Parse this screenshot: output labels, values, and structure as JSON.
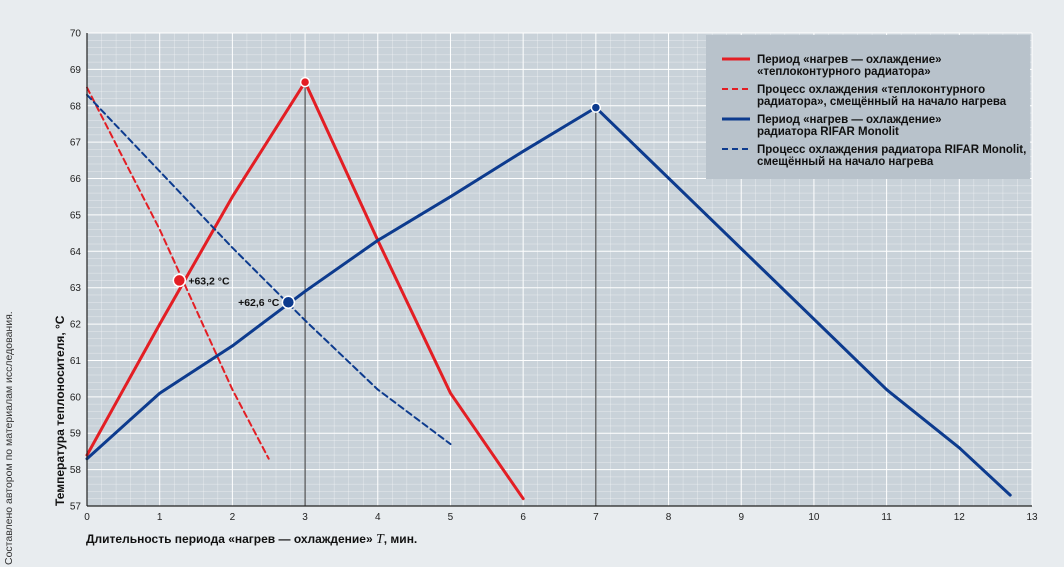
{
  "chart_data": {
    "type": "line",
    "xlabel_prefix": "Длительность периода «нагрев — охлаждение» ",
    "xlabel_var": "T",
    "xlabel_suffix": ", мин.",
    "ylabel": "Температура теплоносителя, °С",
    "source": "Составлено автором по материалам исследования.",
    "xlim": [
      0,
      13
    ],
    "ylim": [
      57,
      70
    ],
    "x_ticks": [
      0,
      1,
      2,
      3,
      4,
      5,
      6,
      7,
      8,
      9,
      10,
      11,
      12,
      13
    ],
    "y_ticks": [
      57,
      58,
      59,
      60,
      61,
      62,
      63,
      64,
      65,
      66,
      67,
      68,
      69,
      70
    ],
    "grid": true,
    "legend_position": "top-right",
    "series": [
      {
        "name": "Период «нагрев — охлаждение» «теплоконтурного радиатора»",
        "legend_lines": [
          "Период «нагрев — охлаждение»",
          "«теплоконтурного радиатора»"
        ],
        "color": "#e31e24",
        "dashed": false,
        "points": [
          [
            0,
            58.4
          ],
          [
            1,
            62.0
          ],
          [
            2,
            65.5
          ],
          [
            3,
            68.65
          ],
          [
            4,
            64.3
          ],
          [
            5,
            60.1
          ],
          [
            6,
            57.2
          ]
        ]
      },
      {
        "name": "Процесс охлаждения «теплоконтурного радиатора», смещённый на начало нагрева",
        "legend_lines": [
          "Процесс охлаждения «теплоконтурного",
          "радиатора», смещённый на начало нагрева"
        ],
        "color": "#e31e24",
        "dashed": true,
        "points": [
          [
            0,
            68.5
          ],
          [
            1,
            64.6
          ],
          [
            2,
            60.2
          ],
          [
            2.5,
            58.3
          ]
        ]
      },
      {
        "name": "Период «нагрев — охлаждение» радиатора RIFAR Monolit",
        "legend_lines": [
          "Период «нагрев — охлаждение»",
          "радиатора RIFAR Monolit"
        ],
        "color": "#0d3b8e",
        "dashed": false,
        "points": [
          [
            0,
            58.3
          ],
          [
            1,
            60.1
          ],
          [
            2,
            61.4
          ],
          [
            3,
            62.9
          ],
          [
            4,
            64.3
          ],
          [
            5,
            65.5
          ],
          [
            6,
            66.75
          ],
          [
            7,
            67.95
          ],
          [
            11,
            60.2
          ],
          [
            12,
            58.6
          ],
          [
            12.7,
            57.3
          ]
        ]
      },
      {
        "name": "Процесс охлаждения радиатора RIFAR Monolit, смещённый на начало нагрева",
        "legend_lines": [
          "Процесс охлаждения радиатора RIFAR Monolit,",
          "смещённый на начало нагрева"
        ],
        "color": "#0d3b8e",
        "dashed": true,
        "points": [
          [
            0,
            68.3
          ],
          [
            1,
            66.2
          ],
          [
            2,
            64.1
          ],
          [
            3,
            62.1
          ],
          [
            4,
            60.2
          ],
          [
            5,
            58.7
          ]
        ]
      }
    ],
    "peaks": [
      {
        "x": 3,
        "y": 68.65,
        "color": "#e31e24"
      },
      {
        "x": 7,
        "y": 67.95,
        "color": "#0d3b8e"
      }
    ],
    "annotations": [
      {
        "x": 1.27,
        "y": 63.2,
        "label": "+63,2 °С",
        "color": "#e31e24",
        "side": "right"
      },
      {
        "x": 2.77,
        "y": 62.6,
        "label": "+62,6 °С",
        "color": "#0d3b8e",
        "side": "left"
      }
    ]
  }
}
